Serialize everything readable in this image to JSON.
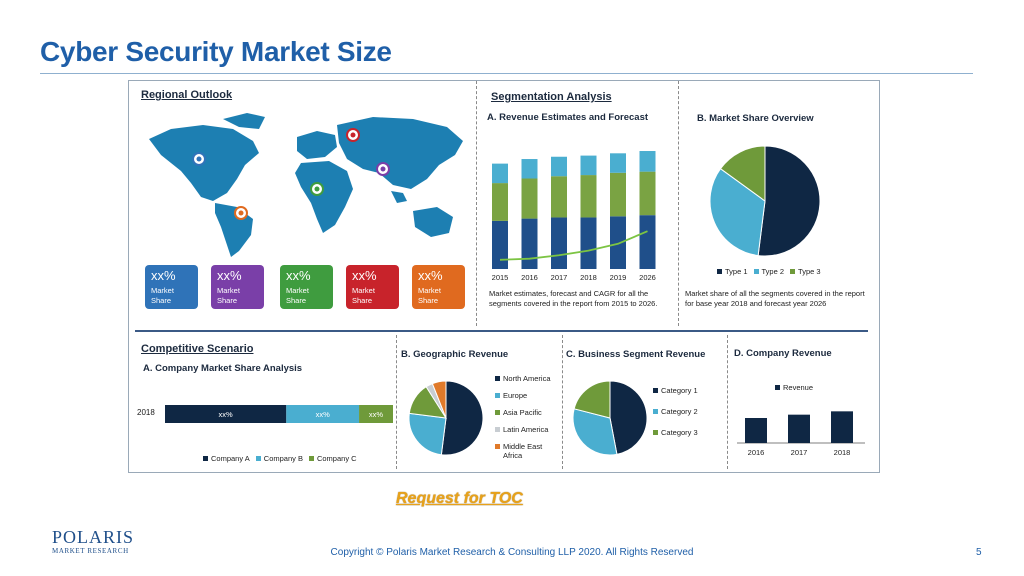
{
  "page": {
    "title": "Cyber Security Market Size",
    "toc_link": "Request for TOC",
    "copyright": "Copyright © Polaris Market Research & Consulting LLP 2020. All Rights Reserved",
    "page_number": "5"
  },
  "logo": {
    "name": "POLARIS",
    "sub": "MARKET RESEARCH"
  },
  "regional": {
    "title": "Regional Outlook",
    "boxes": [
      {
        "pct": "xx%",
        "label": "Market Share",
        "color": "#2f73b8"
      },
      {
        "pct": "xx%",
        "label": "Market Share",
        "color": "#7a3fa8"
      },
      {
        "pct": "xx%",
        "label": "Market Share",
        "color": "#3f9c3f"
      },
      {
        "pct": "xx%",
        "label": "Market Share",
        "color": "#c8232b"
      },
      {
        "pct": "xx%",
        "label": "Market Share",
        "color": "#e06a1f"
      }
    ]
  },
  "segmentation": {
    "title": "Segmentation Analysis",
    "revenue_title": "A. Revenue Estimates and Forecast",
    "revenue_note": "Market estimates, forecast and CAGR for all the segments covered in the report from 2015 to 2026.",
    "share_title": "B. Market Share Overview",
    "share_note": "Market share of all the segments covered in the report for base year 2018 and forecast year 2026"
  },
  "competitive": {
    "title": "Competitive Scenario",
    "share_title": "A. Company Market Share Analysis",
    "year": "2018",
    "legend": [
      "Company A",
      "Company B",
      "Company C"
    ]
  },
  "geographic": {
    "title": "B. Geographic Revenue"
  },
  "business": {
    "title": "C. Business Segment Revenue"
  },
  "company_rev": {
    "title": "D. Company Revenue"
  },
  "chart_data": [
    {
      "id": "revenue_forecast",
      "type": "bar",
      "stacked": true,
      "categories": [
        "2015",
        "2016",
        "2017",
        "2018",
        "2019",
        "2026"
      ],
      "series": [
        {
          "values": [
            42,
            44,
            45,
            45,
            46,
            47
          ],
          "color": "#1f4f8a"
        },
        {
          "values": [
            33,
            35,
            36,
            37,
            38,
            38
          ],
          "color": "#7aa343"
        },
        {
          "values": [
            17,
            17,
            17,
            17,
            17,
            18
          ],
          "color": "#4aaed0"
        }
      ],
      "trend": [
        8,
        9,
        12,
        16,
        22,
        33
      ],
      "trend_color": "#7cc443",
      "ylim": [
        0,
        110
      ]
    },
    {
      "id": "market_share_overview",
      "type": "pie",
      "slices": [
        {
          "name": "Type 1",
          "value": 52,
          "color": "#0f2744"
        },
        {
          "name": "Type 2",
          "value": 33,
          "color": "#4aaed0"
        },
        {
          "name": "Type 3",
          "value": 15,
          "color": "#6f9a3a"
        }
      ]
    },
    {
      "id": "company_share",
      "type": "bar",
      "orientation": "horizontal",
      "stacked": true,
      "categories": [
        "2018"
      ],
      "series": [
        {
          "name": "Company A",
          "values": [
            50
          ],
          "label": "xx%",
          "color": "#0f2744"
        },
        {
          "name": "Company B",
          "values": [
            30
          ],
          "label": "xx%",
          "color": "#4aaed0"
        },
        {
          "name": "Company C",
          "values": [
            14
          ],
          "label": "xx%",
          "color": "#6f9a3a"
        }
      ],
      "xlim": [
        0,
        94
      ]
    },
    {
      "id": "geographic_revenue",
      "type": "pie",
      "slices": [
        {
          "name": "North America",
          "value": 52,
          "color": "#0f2744"
        },
        {
          "name": "Europe",
          "value": 25,
          "color": "#4aaed0"
        },
        {
          "name": "Asia Pacific",
          "value": 14,
          "color": "#6f9a3a"
        },
        {
          "name": "Latin America",
          "value": 3,
          "color": "#c8cdd2"
        },
        {
          "name": "Middle East Africa",
          "value": 6,
          "color": "#e07a2a"
        }
      ]
    },
    {
      "id": "business_segment_revenue",
      "type": "pie",
      "slices": [
        {
          "name": "Category 1",
          "value": 47,
          "color": "#0f2744"
        },
        {
          "name": "Category 2",
          "value": 32,
          "color": "#4aaed0"
        },
        {
          "name": "Category 3",
          "value": 21,
          "color": "#6f9a3a"
        }
      ]
    },
    {
      "id": "company_revenue",
      "type": "bar",
      "categories": [
        "2016",
        "2017",
        "2018"
      ],
      "series": [
        {
          "name": "Revenue",
          "values": [
            30,
            34,
            38
          ],
          "color": "#0f2744"
        }
      ],
      "ylim": [
        0,
        60
      ]
    }
  ]
}
